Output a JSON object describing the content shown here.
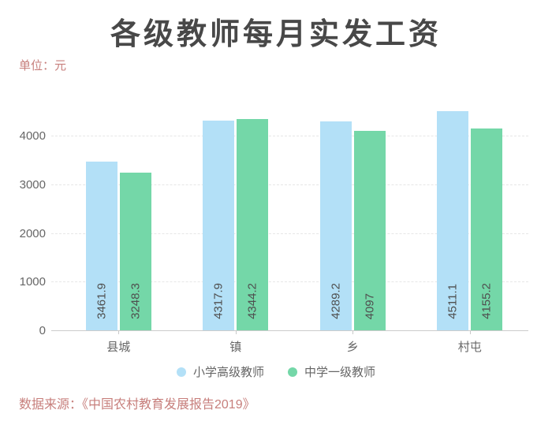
{
  "page": {
    "title": "各级教师每月实发工资",
    "unit_label": "单位：元",
    "source": "数据来源：《中国农村教育发展报告2019》"
  },
  "colors": {
    "title_text": "#484848",
    "axis_text": "#666666",
    "accent_text": "#c77f7c",
    "gridline": "#e6e6e6",
    "axis_line": "#cccccc",
    "series_blue": "#b3e0f7",
    "series_green": "#74d7a8"
  },
  "chart_data": {
    "type": "bar",
    "title": "各级教师每月实发工资",
    "unit": "单位：元",
    "categories": [
      "县城",
      "镇",
      "乡",
      "村屯"
    ],
    "series": [
      {
        "name": "小学高级教师",
        "color": "#b3e0f7",
        "values": [
          3461.9,
          4317.9,
          4289.2,
          4511.1
        ]
      },
      {
        "name": "中学一级教师",
        "color": "#74d7a8",
        "values": [
          3248.3,
          4344.2,
          4097,
          4155.2
        ]
      }
    ],
    "yticks": [
      0,
      1000,
      2000,
      3000,
      4000
    ],
    "ylim": [
      0,
      4900
    ],
    "grid": "horizontal-dashed",
    "legend_position": "bottom",
    "value_labels": "rotated-90-inside-bar-bottom",
    "source": "数据来源：《中国农村教育发展报告2019》"
  }
}
